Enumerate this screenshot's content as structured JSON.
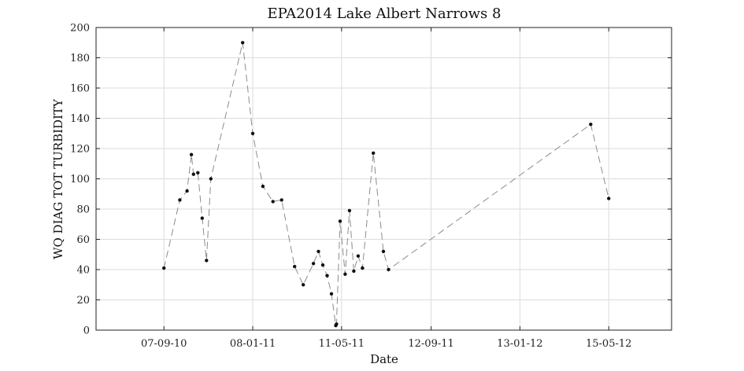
{
  "chart_data": {
    "type": "line",
    "title": "EPA2014 Lake Albert Narrows 8",
    "xlabel": "Date",
    "ylabel": "WQ DIAG TOT TURBIDITY",
    "ylim": [
      0,
      200
    ],
    "yticks": [
      0,
      20,
      40,
      60,
      80,
      100,
      120,
      140,
      160,
      180,
      200
    ],
    "xlim": [
      "2010-06-05",
      "2012-08-10"
    ],
    "xticks": [
      {
        "date": "2010-09-07",
        "label": "07-09-10"
      },
      {
        "date": "2011-01-08",
        "label": "08-01-11"
      },
      {
        "date": "2011-05-11",
        "label": "11-05-11"
      },
      {
        "date": "2011-09-12",
        "label": "12-09-11"
      },
      {
        "date": "2012-01-13",
        "label": "13-01-12"
      },
      {
        "date": "2012-05-15",
        "label": "15-05-12"
      }
    ],
    "grid": true,
    "series": [
      {
        "points": [
          {
            "x": "2010-09-07",
            "y": 41
          },
          {
            "x": "2010-09-29",
            "y": 86
          },
          {
            "x": "2010-10-09",
            "y": 92
          },
          {
            "x": "2010-10-15",
            "y": 116
          },
          {
            "x": "2010-10-18",
            "y": 103
          },
          {
            "x": "2010-10-24",
            "y": 104
          },
          {
            "x": "2010-10-30",
            "y": 74
          },
          {
            "x": "2010-11-05",
            "y": 46
          },
          {
            "x": "2010-11-11",
            "y": 100
          },
          {
            "x": "2010-12-25",
            "y": 190
          },
          {
            "x": "2011-01-08",
            "y": 130
          },
          {
            "x": "2011-01-22",
            "y": 95
          },
          {
            "x": "2011-02-05",
            "y": 85
          },
          {
            "x": "2011-02-17",
            "y": 86
          },
          {
            "x": "2011-03-07",
            "y": 42
          },
          {
            "x": "2011-03-19",
            "y": 30
          },
          {
            "x": "2011-04-02",
            "y": 44
          },
          {
            "x": "2011-04-09",
            "y": 52
          },
          {
            "x": "2011-04-15",
            "y": 43
          },
          {
            "x": "2011-04-21",
            "y": 36
          },
          {
            "x": "2011-04-27",
            "y": 24
          },
          {
            "x": "2011-05-03",
            "y": 3
          },
          {
            "x": "2011-05-04",
            "y": 4
          },
          {
            "x": "2011-05-09",
            "y": 72
          },
          {
            "x": "2011-05-16",
            "y": 37
          },
          {
            "x": "2011-05-22",
            "y": 79
          },
          {
            "x": "2011-05-28",
            "y": 39
          },
          {
            "x": "2011-06-03",
            "y": 49
          },
          {
            "x": "2011-06-09",
            "y": 41
          },
          {
            "x": "2011-06-24",
            "y": 117
          },
          {
            "x": "2011-07-08",
            "y": 52
          },
          {
            "x": "2011-07-15",
            "y": 40
          },
          {
            "x": "2012-04-20",
            "y": 136
          },
          {
            "x": "2012-05-15",
            "y": 87
          }
        ]
      }
    ]
  }
}
